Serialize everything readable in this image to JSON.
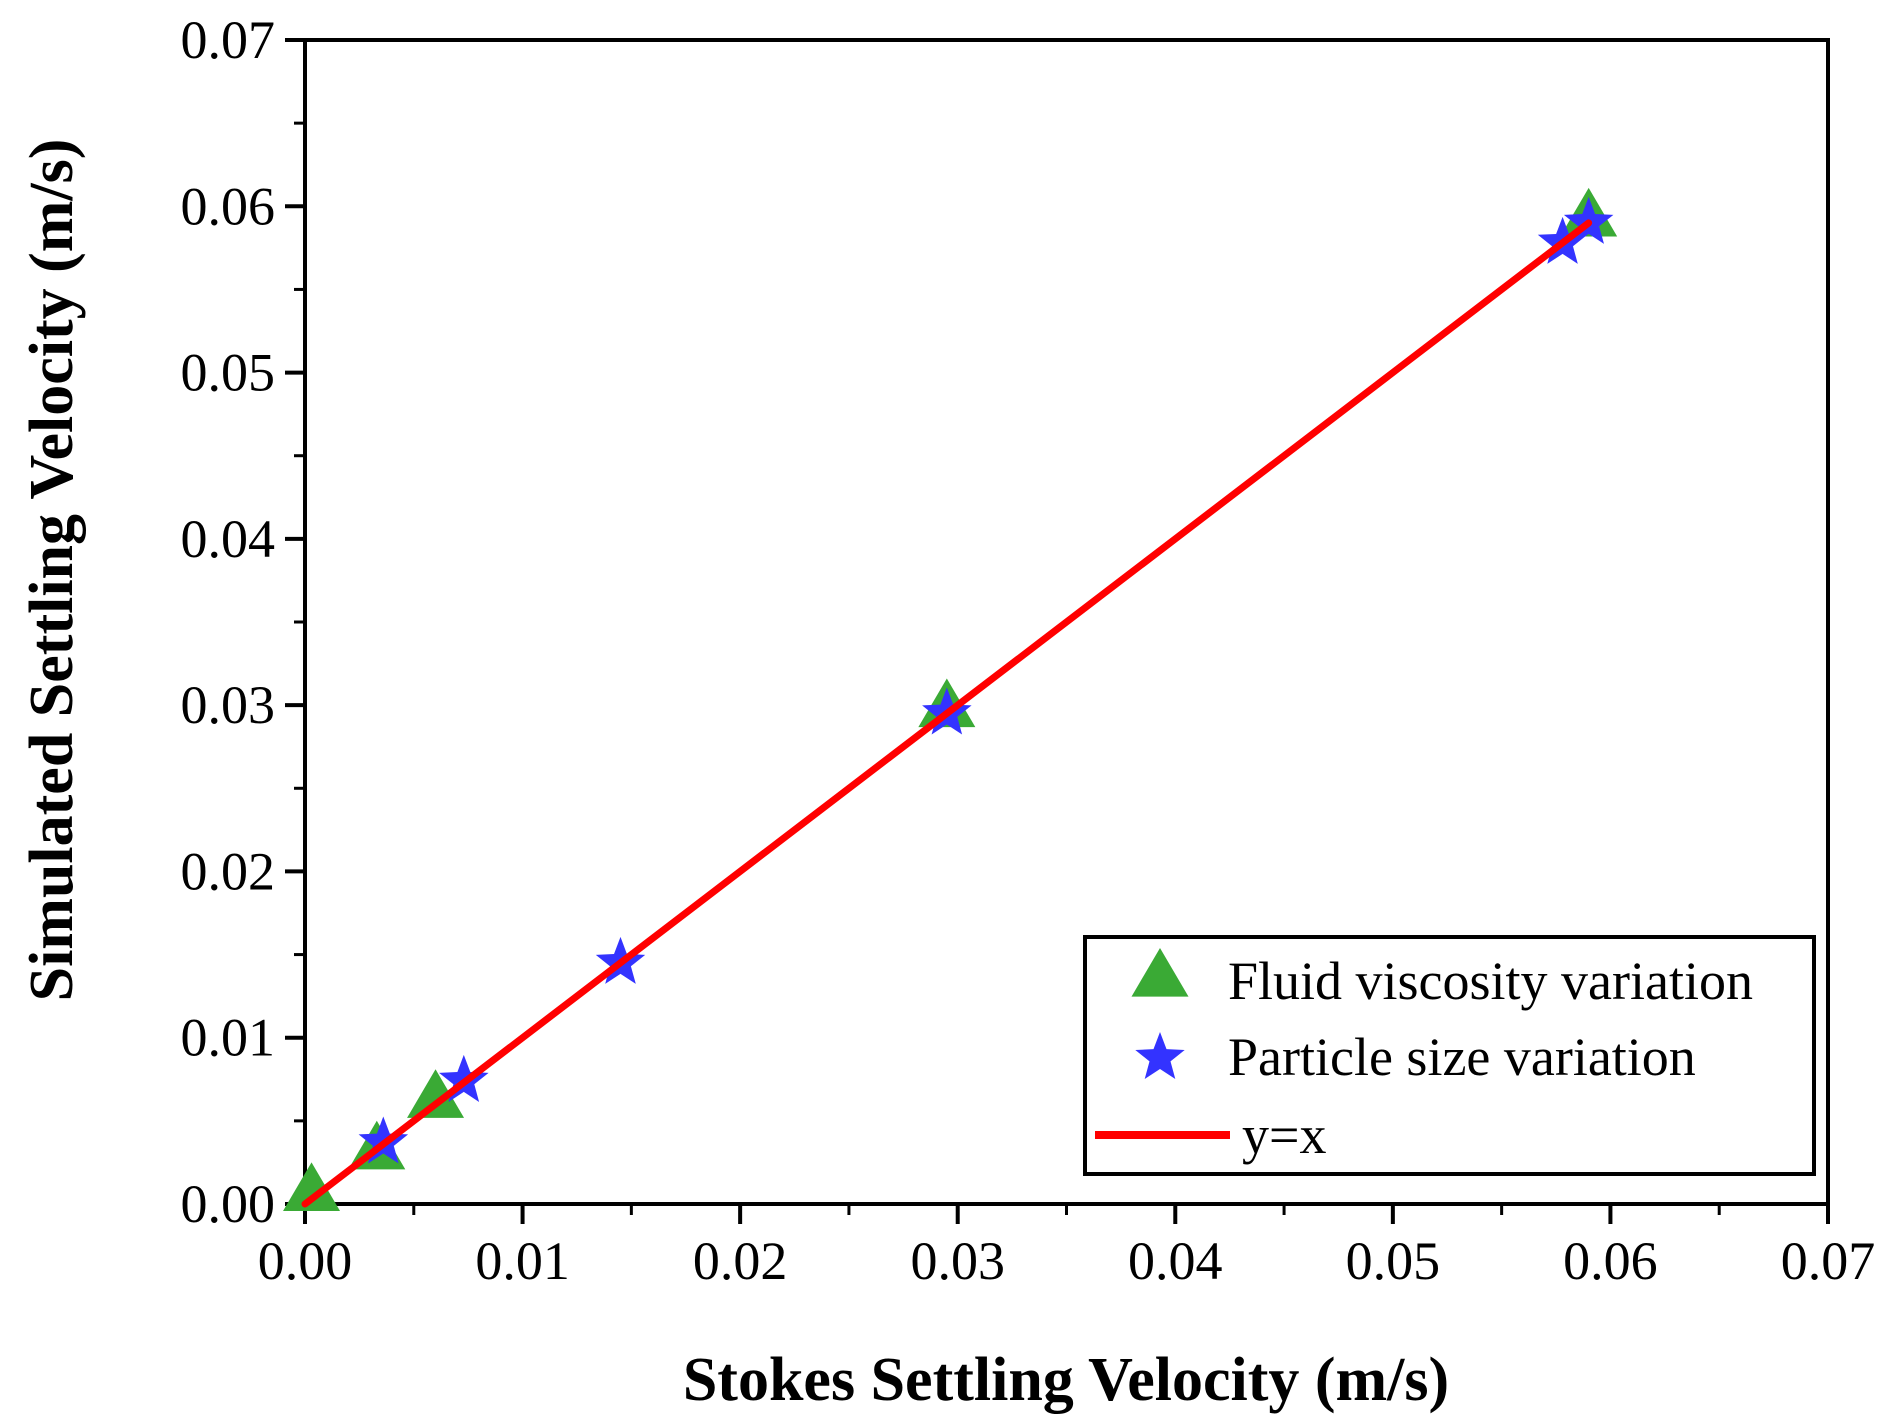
{
  "chart_data": {
    "type": "scatter",
    "title": "",
    "xlabel": "Stokes Settling Velocity (m/s)",
    "ylabel": "Simulated Settling Velocity (m/s)",
    "xlim": [
      0,
      0.07
    ],
    "ylim": [
      0,
      0.07
    ],
    "xticks": [
      "0.00",
      "0.01",
      "0.02",
      "0.03",
      "0.04",
      "0.05",
      "0.06",
      "0.07"
    ],
    "yticks": [
      "0.00",
      "0.01",
      "0.02",
      "0.03",
      "0.04",
      "0.05",
      "0.06",
      "0.07"
    ],
    "grid": false,
    "legend_position": "bottom-right",
    "series": [
      {
        "name": "Fluid viscosity variation",
        "marker": "triangle",
        "color": "#3aaa35",
        "x": [
          0.0003,
          0.0033,
          0.006,
          0.0295,
          0.059
        ],
        "y": [
          0.0007,
          0.0032,
          0.0063,
          0.0298,
          0.0593
        ]
      },
      {
        "name": "Particle size variation",
        "marker": "star",
        "color": "#3333ff",
        "x": [
          0.0036,
          0.0073,
          0.0145,
          0.0295,
          0.0578,
          0.059
        ],
        "y": [
          0.0037,
          0.0074,
          0.0145,
          0.0295,
          0.0578,
          0.059
        ]
      },
      {
        "name": "y=x",
        "marker": "line",
        "color": "#ff0000",
        "x": [
          0,
          0.059
        ],
        "y": [
          0,
          0.059
        ]
      }
    ]
  }
}
